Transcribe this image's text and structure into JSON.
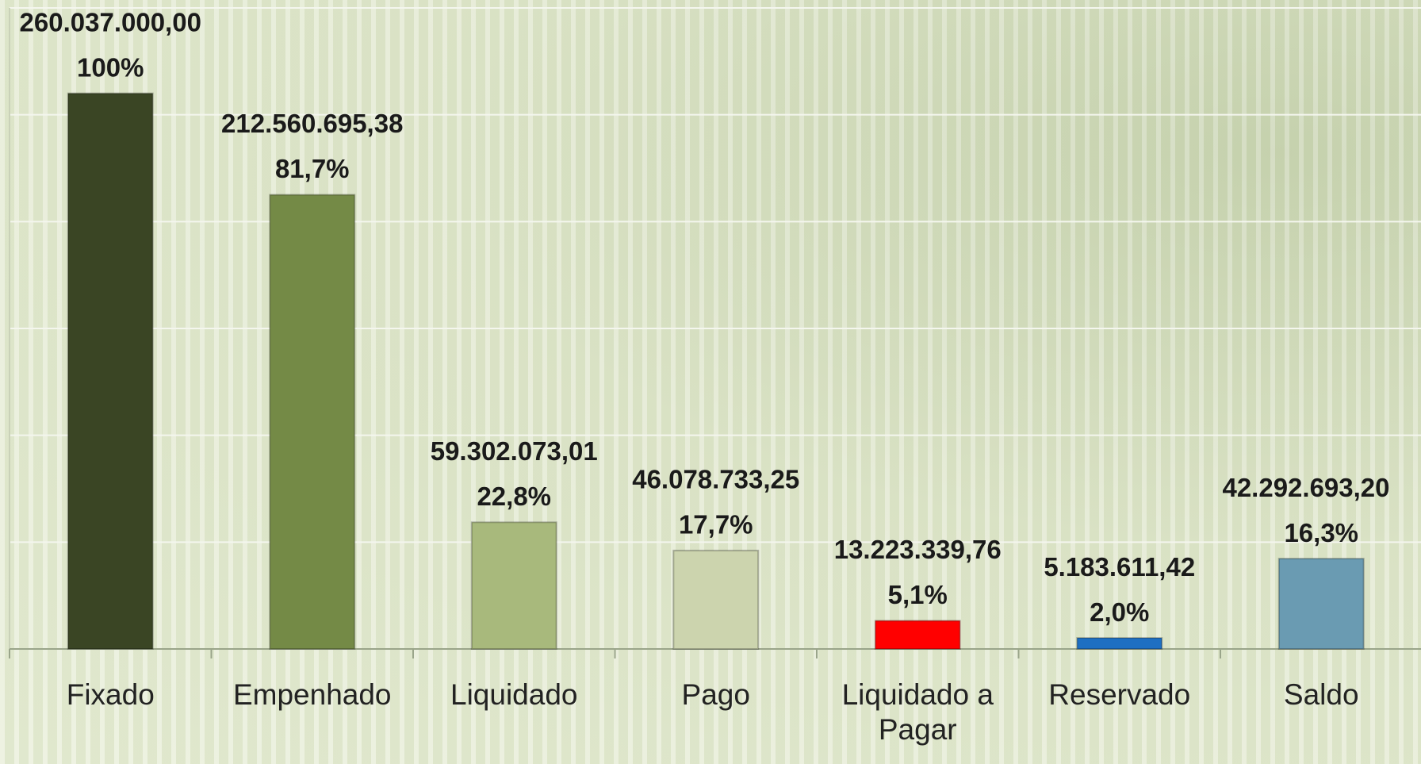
{
  "chart_data": {
    "type": "bar",
    "categories": [
      "Fixado",
      "Empenhado",
      "Liquidado",
      "Pago",
      "Liquidado a Pagar",
      "Reservado",
      "Saldo"
    ],
    "values": [
      260037000.0,
      212560695.38,
      59302073.01,
      46078733.25,
      13223339.76,
      5183611.42,
      42292693.2
    ],
    "value_labels": [
      "260.037.000,00",
      "212.560.695,38",
      "59.302.073,01",
      "46.078.733,25",
      "13.223.339,76",
      "5.183.611,42",
      "42.292.693,20"
    ],
    "percents": [
      100,
      81.7,
      22.8,
      17.7,
      5.1,
      2.0,
      16.3
    ],
    "percent_labels": [
      "100%",
      "81,7%",
      "22,8%",
      "17,7%",
      "5,1%",
      "2,0%",
      "16,3%"
    ],
    "colors": [
      "#3a4524",
      "#748a46",
      "#a8b97c",
      "#ccd4ae",
      "#ff0000",
      "#1e6fc2",
      "#6a9bb2"
    ],
    "ylim": [
      0,
      300000000
    ],
    "yticks": [
      0,
      50000000,
      100000000,
      150000000,
      200000000,
      250000000,
      300000000
    ],
    "grid": true
  }
}
